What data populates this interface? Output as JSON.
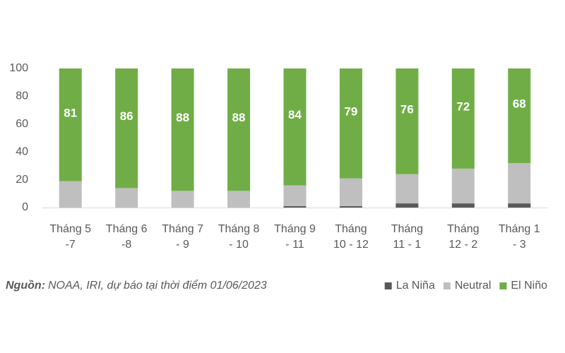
{
  "chart_data": {
    "type": "stacked_bar",
    "categories": [
      [
        "Tháng 5",
        "-7"
      ],
      [
        "Tháng 6",
        "-8"
      ],
      [
        "Tháng 7",
        "- 9"
      ],
      [
        "Tháng 8",
        "- 10"
      ],
      [
        "Tháng 9",
        "- 11"
      ],
      [
        "Tháng",
        "10 - 12"
      ],
      [
        "Tháng",
        "11 - 1"
      ],
      [
        "Tháng",
        "12 - 2"
      ],
      [
        "Tháng 1",
        "- 3"
      ]
    ],
    "series": [
      {
        "name": "La Niña",
        "color": "#595959",
        "values": [
          0,
          0,
          0,
          0,
          1,
          1,
          3,
          3,
          3
        ]
      },
      {
        "name": "Neutral",
        "color": "#bfbfbf",
        "values": [
          19,
          14,
          12,
          12,
          15,
          20,
          21,
          25,
          29
        ]
      },
      {
        "name": "El Niño",
        "color": "#70ad47",
        "values": [
          81,
          86,
          88,
          88,
          84,
          79,
          76,
          72,
          68
        ],
        "data_labels": true
      }
    ],
    "ylim": [
      0,
      100
    ],
    "yticks": [
      0,
      20,
      40,
      60,
      80,
      100
    ],
    "grid": false,
    "legend": "bottom-right",
    "source": {
      "label": "Nguồn:",
      "text": "NOAA, IRI, dự báo tại thời điểm 01/06/2023"
    }
  }
}
